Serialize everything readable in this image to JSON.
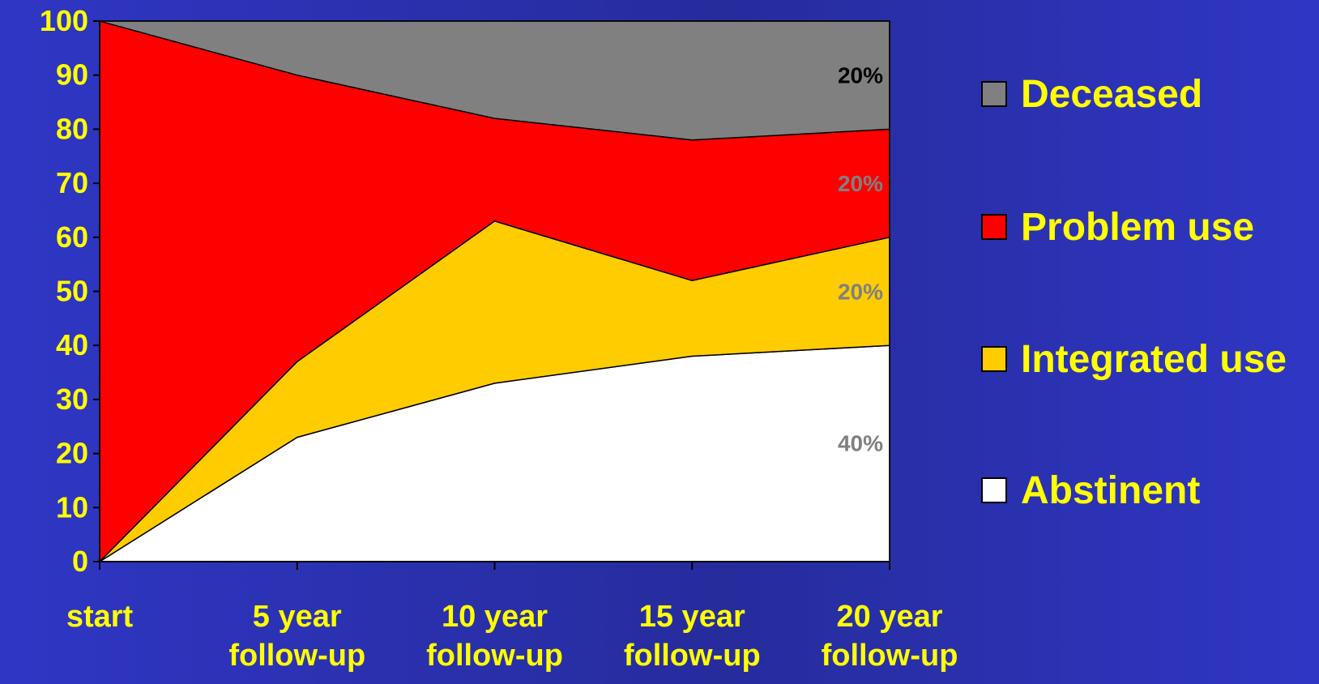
{
  "chart_data": {
    "type": "area",
    "stacked": true,
    "categories": [
      [
        "start"
      ],
      [
        "5 year",
        "follow-up"
      ],
      [
        "10 year",
        "follow-up"
      ],
      [
        "15 year",
        "follow-up"
      ],
      [
        "20 year",
        "follow-up"
      ]
    ],
    "series": [
      {
        "name": "Abstinent",
        "values": [
          0,
          23,
          33,
          38,
          40
        ],
        "color": "#ffffff"
      },
      {
        "name": "Integrated use",
        "values": [
          0,
          14,
          30,
          14,
          20
        ],
        "color": "#ffcc00"
      },
      {
        "name": "Problem use",
        "values": [
          100,
          53,
          19,
          26,
          20
        ],
        "color": "#ff0000"
      },
      {
        "name": "Deceased",
        "values": [
          0,
          10,
          18,
          22,
          20
        ],
        "color": "#808080"
      }
    ],
    "legend_order": [
      "Deceased",
      "Problem use",
      "Integrated use",
      "Abstinent"
    ],
    "legend_position": "right",
    "ylim": [
      0,
      100
    ],
    "yticks": [
      0,
      10,
      20,
      30,
      40,
      50,
      60,
      70,
      80,
      90,
      100
    ],
    "annotations": [
      {
        "text": "20%",
        "y": 90,
        "color": "#000000"
      },
      {
        "text": "20%",
        "y": 70,
        "color": "#808080"
      },
      {
        "text": "20%",
        "y": 50,
        "color": "#808080"
      },
      {
        "text": "40%",
        "y": 22,
        "color": "#808080"
      }
    ],
    "title": "",
    "xlabel": "",
    "ylabel": "",
    "grid": false
  },
  "colors": {
    "text": "#ffff00",
    "outline": "#000000"
  }
}
